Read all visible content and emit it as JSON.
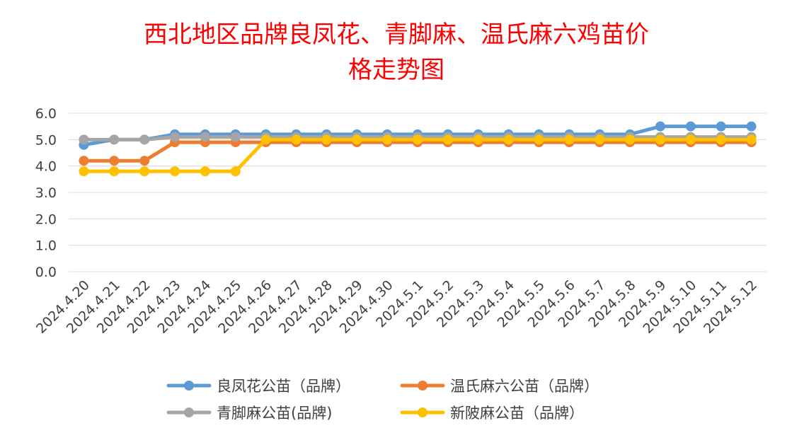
{
  "chart_data": {
    "type": "line",
    "title": "西北地区品牌良凤花、青脚麻、温氏麻六鸡苗价格走势图",
    "title_lines": [
      "西北地区品牌良凤花、青脚麻、温氏麻六鸡苗价",
      "格走势图"
    ],
    "xlabel": "",
    "ylabel": "",
    "ylim": [
      0,
      6
    ],
    "yticks": [
      "0.0",
      "1.0",
      "2.0",
      "3.0",
      "4.0",
      "5.0",
      "6.0"
    ],
    "grid": true,
    "legend_position": "bottom",
    "categories": [
      "2024.4.20",
      "2024.4.21",
      "2024.4.22",
      "2024.4.23",
      "2024.4.24",
      "2024.4.25",
      "2024.4.26",
      "2024.4.27",
      "2024.4.28",
      "2024.4.29",
      "2024.4.30",
      "2024.5.1",
      "2024.5.2",
      "2024.5.3",
      "2024.5.4",
      "2024.5.5",
      "2024.5.6",
      "2024.5.7",
      "2024.5.8",
      "2024.5.9",
      "2024.5.10",
      "2024.5.11",
      "2024.5.12"
    ],
    "series": [
      {
        "name": "良凤花公苗（品牌）",
        "color": "#5b9bd5",
        "values": [
          4.8,
          5.0,
          5.0,
          5.2,
          5.2,
          5.2,
          5.2,
          5.2,
          5.2,
          5.2,
          5.2,
          5.2,
          5.2,
          5.2,
          5.2,
          5.2,
          5.2,
          5.2,
          5.2,
          5.5,
          5.5,
          5.5,
          5.5
        ]
      },
      {
        "name": "温氏麻六公苗（品牌）",
        "color": "#ed7d31",
        "values": [
          4.2,
          4.2,
          4.2,
          4.9,
          4.9,
          4.9,
          4.9,
          4.9,
          4.9,
          4.9,
          4.9,
          4.9,
          4.9,
          4.9,
          4.9,
          4.9,
          4.9,
          4.9,
          4.9,
          4.9,
          4.9,
          4.9,
          4.9
        ]
      },
      {
        "name": "青脚麻公苗(品牌)",
        "color": "#a5a5a5",
        "values": [
          5.0,
          5.0,
          5.0,
          5.1,
          5.1,
          5.1,
          5.1,
          5.1,
          5.1,
          5.1,
          5.1,
          5.1,
          5.1,
          5.1,
          5.1,
          5.1,
          5.1,
          5.1,
          5.1,
          5.1,
          5.1,
          5.1,
          5.1
        ]
      },
      {
        "name": "新陂麻公苗（品牌）",
        "color": "#ffc000",
        "values": [
          3.8,
          3.8,
          3.8,
          3.8,
          3.8,
          3.8,
          5.0,
          5.0,
          5.0,
          5.0,
          5.0,
          5.0,
          5.0,
          5.0,
          5.0,
          5.0,
          5.0,
          5.0,
          5.0,
          5.0,
          5.0,
          5.0,
          5.0
        ]
      }
    ]
  }
}
